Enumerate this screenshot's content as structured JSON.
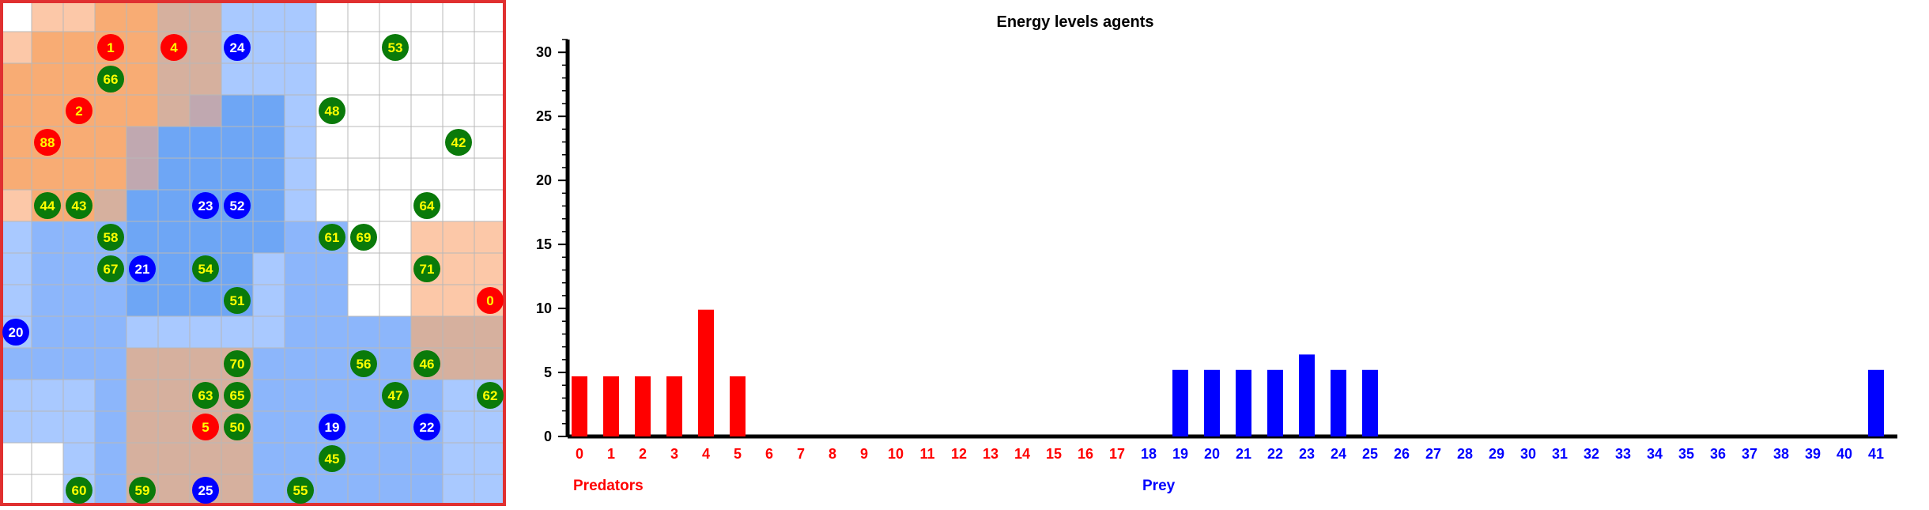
{
  "grid": {
    "columns": 16,
    "rows": 16,
    "colors": {
      "white": "#ffffff",
      "lightBlue": "#a9c9ff",
      "midBlue": "#8cb6fb",
      "blue": "#6ea6f5",
      "peach": "#fcc8a8",
      "orange": "#f8ac74",
      "tan": "#d6b09e",
      "grey": "#c0a8b0",
      "predator": "#ff0000",
      "prey": "#0000ff",
      "food": "#0a7a0a",
      "border": "#e03030"
    },
    "cells": [
      "WPPOOTTLLLWWWWWW",
      "POOOOTTLLLWWWWWW",
      "OOOOOTTLLLWWWWWW",
      "OOOOOTGBBLWWWWWW",
      "OOOOGBBBBLWWWWWW",
      "OOOOGBBBBLWWWWWW",
      "POOTBBBBBLWWWWWW",
      "LMMMBBBBBMMWWPPP",
      "LMMMBBBBLMMWWPPP",
      "LMMMBBBBLMMWWPPP",
      "LMMMLLLLLMMMMTTT",
      "MMMMTTTTMMMMMTTT",
      "LLLMTTTTMMMMMMLL",
      "LLLMTTTTMMMMMMLL",
      "WWLMTTTTMMMMMMLL",
      "WWLMTTTTMMMMMMLL"
    ],
    "agents": [
      {
        "label": "1",
        "kind": "predator",
        "col": 3,
        "row": 1
      },
      {
        "label": "4",
        "kind": "predator",
        "col": 5,
        "row": 1
      },
      {
        "label": "24",
        "kind": "prey",
        "col": 7,
        "row": 1
      },
      {
        "label": "53",
        "kind": "food",
        "col": 12,
        "row": 1
      },
      {
        "label": "66",
        "kind": "food",
        "col": 3,
        "row": 2
      },
      {
        "label": "2",
        "kind": "predator",
        "col": 2,
        "row": 3
      },
      {
        "label": "48",
        "kind": "food",
        "col": 10,
        "row": 3
      },
      {
        "label": "88",
        "kind": "predator",
        "col": 1,
        "row": 4
      },
      {
        "label": "42",
        "kind": "food",
        "col": 14,
        "row": 4
      },
      {
        "label": "44",
        "kind": "food",
        "col": 1,
        "row": 6
      },
      {
        "label": "43",
        "kind": "food",
        "col": 2,
        "row": 6
      },
      {
        "label": "23",
        "kind": "prey",
        "col": 6,
        "row": 6
      },
      {
        "label": "52",
        "kind": "prey",
        "col": 7,
        "row": 6
      },
      {
        "label": "64",
        "kind": "food",
        "col": 13,
        "row": 6
      },
      {
        "label": "58",
        "kind": "food",
        "col": 3,
        "row": 7
      },
      {
        "label": "61",
        "kind": "food",
        "col": 10,
        "row": 7
      },
      {
        "label": "69",
        "kind": "food",
        "col": 11,
        "row": 7
      },
      {
        "label": "67",
        "kind": "food",
        "col": 3,
        "row": 8
      },
      {
        "label": "21",
        "kind": "prey",
        "col": 4,
        "row": 8
      },
      {
        "label": "54",
        "kind": "food",
        "col": 6,
        "row": 8
      },
      {
        "label": "71",
        "kind": "food",
        "col": 13,
        "row": 8
      },
      {
        "label": "51",
        "kind": "food",
        "col": 7,
        "row": 9
      },
      {
        "label": "0",
        "kind": "predator",
        "col": 15,
        "row": 9
      },
      {
        "label": "20",
        "kind": "prey",
        "col": 0,
        "row": 10
      },
      {
        "label": "70",
        "kind": "food",
        "col": 7,
        "row": 11
      },
      {
        "label": "56",
        "kind": "food",
        "col": 11,
        "row": 11
      },
      {
        "label": "46",
        "kind": "food",
        "col": 13,
        "row": 11
      },
      {
        "label": "63",
        "kind": "food",
        "col": 6,
        "row": 12
      },
      {
        "label": "65",
        "kind": "food",
        "col": 7,
        "row": 12
      },
      {
        "label": "47",
        "kind": "food",
        "col": 12,
        "row": 12
      },
      {
        "label": "62",
        "kind": "food",
        "col": 15,
        "row": 12
      },
      {
        "label": "5",
        "kind": "predator",
        "col": 6,
        "row": 13
      },
      {
        "label": "50",
        "kind": "food",
        "col": 7,
        "row": 13
      },
      {
        "label": "19",
        "kind": "prey",
        "col": 10,
        "row": 13
      },
      {
        "label": "22",
        "kind": "prey",
        "col": 13,
        "row": 13
      },
      {
        "label": "45",
        "kind": "food",
        "col": 10,
        "row": 14
      },
      {
        "label": "60",
        "kind": "food",
        "col": 2,
        "row": 15
      },
      {
        "label": "59",
        "kind": "food",
        "col": 4,
        "row": 15
      },
      {
        "label": "25",
        "kind": "prey",
        "col": 6,
        "row": 15
      },
      {
        "label": "55",
        "kind": "food",
        "col": 9,
        "row": 15
      }
    ]
  },
  "chart_data": {
    "type": "bar",
    "title": "Energy levels agents",
    "ylim": [
      0,
      31
    ],
    "yticks": [
      0,
      5,
      10,
      15,
      20,
      25,
      30
    ],
    "categories": [
      "0",
      "1",
      "2",
      "3",
      "4",
      "5",
      "6",
      "7",
      "8",
      "9",
      "10",
      "11",
      "12",
      "13",
      "14",
      "15",
      "16",
      "17",
      "18",
      "19",
      "20",
      "21",
      "22",
      "23",
      "24",
      "25",
      "26",
      "27",
      "28",
      "29",
      "30",
      "31",
      "32",
      "33",
      "34",
      "35",
      "36",
      "37",
      "38",
      "39",
      "40",
      "41"
    ],
    "values": [
      4.7,
      4.7,
      4.7,
      4.7,
      9.9,
      4.7,
      0,
      0,
      0,
      0,
      0,
      0,
      0,
      0,
      0,
      0,
      0,
      0,
      0,
      5.2,
      5.2,
      5.2,
      5.2,
      6.4,
      5.2,
      5.2,
      0,
      0,
      0,
      0,
      0,
      0,
      0,
      0,
      0,
      0,
      0,
      0,
      0,
      0,
      0,
      5.2
    ],
    "predator_indices": [
      0,
      17
    ],
    "prey_indices": [
      18,
      41
    ],
    "group_labels": [
      {
        "text": "Predators",
        "group": "predator"
      },
      {
        "text": "Prey",
        "group": "prey"
      }
    ],
    "colors": {
      "predator": "#ff0000",
      "prey": "#0000ff",
      "axis": "#000000"
    },
    "grid": false
  }
}
